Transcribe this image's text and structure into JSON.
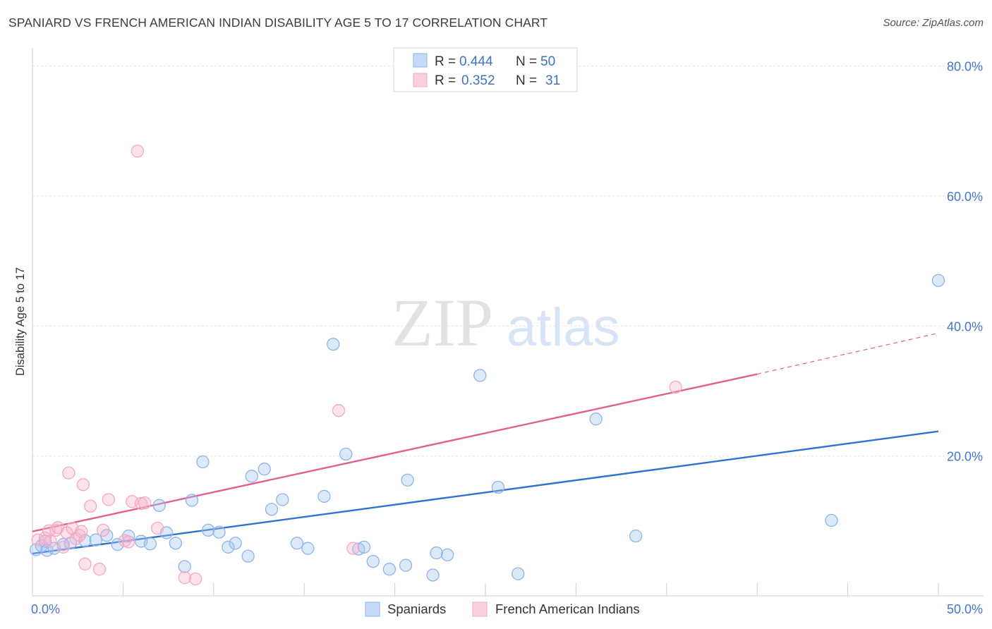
{
  "header": {
    "title": "SPANIARD VS FRENCH AMERICAN INDIAN DISABILITY AGE 5 TO 17 CORRELATION CHART",
    "source": "Source: ZipAtlas.com"
  },
  "watermark": {
    "zip": "ZIP",
    "atlas": "atlas"
  },
  "chart_data": {
    "type": "scatter",
    "title": "SPANIARD VS FRENCH AMERICAN INDIAN DISABILITY AGE 5 TO 17 CORRELATION CHART",
    "xlabel": "",
    "ylabel": "Disability Age 5 to 17",
    "xlim": [
      0,
      50
    ],
    "ylim": [
      -1.5,
      82
    ],
    "x_tick_labels": [
      "0.0%",
      "50.0%"
    ],
    "y_ticks": [
      20,
      40,
      60,
      80
    ],
    "y_tick_labels": [
      "20.0%",
      "40.0%",
      "60.0%",
      "80.0%"
    ],
    "grid": true,
    "legend": {
      "position": "top-center",
      "entries": [
        {
          "r_label": "R =",
          "r_value": "0.444",
          "n_label": "N =",
          "n_value": "50"
        },
        {
          "r_label": "R =",
          "r_value": "0.352",
          "n_label": "N =",
          "n_value": "31"
        }
      ]
    },
    "series": [
      {
        "name": "Spaniards",
        "color": "#8fb4e8",
        "line_color": "#2f72d0",
        "trend": {
          "x0": 0,
          "y0": 5.0,
          "x1": 50,
          "y1": 23.8
        },
        "points": [
          [
            0.2,
            5.6
          ],
          [
            0.5,
            6.2
          ],
          [
            0.7,
            6.9
          ],
          [
            0.8,
            5.5
          ],
          [
            1.2,
            5.8
          ],
          [
            1.7,
            6.4
          ],
          [
            2.1,
            6.6
          ],
          [
            2.9,
            7.0
          ],
          [
            3.5,
            7.1
          ],
          [
            4.1,
            7.8
          ],
          [
            4.7,
            6.4
          ],
          [
            5.3,
            7.7
          ],
          [
            6.0,
            6.9
          ],
          [
            6.5,
            6.5
          ],
          [
            7.0,
            12.4
          ],
          [
            7.4,
            8.2
          ],
          [
            7.9,
            6.6
          ],
          [
            8.4,
            3.0
          ],
          [
            8.8,
            13.2
          ],
          [
            9.4,
            19.1
          ],
          [
            9.7,
            8.6
          ],
          [
            10.3,
            8.3
          ],
          [
            10.8,
            6.0
          ],
          [
            11.2,
            6.6
          ],
          [
            11.9,
            4.6
          ],
          [
            12.1,
            16.9
          ],
          [
            12.8,
            18.0
          ],
          [
            13.2,
            11.8
          ],
          [
            13.8,
            13.3
          ],
          [
            14.6,
            6.6
          ],
          [
            15.2,
            5.8
          ],
          [
            16.1,
            13.8
          ],
          [
            16.6,
            37.2
          ],
          [
            17.3,
            20.3
          ],
          [
            18.0,
            5.7
          ],
          [
            18.3,
            6.0
          ],
          [
            18.8,
            3.8
          ],
          [
            19.7,
            2.6
          ],
          [
            20.6,
            3.2
          ],
          [
            20.7,
            16.3
          ],
          [
            22.1,
            1.7
          ],
          [
            22.3,
            5.1
          ],
          [
            22.9,
            4.8
          ],
          [
            24.7,
            32.4
          ],
          [
            25.7,
            15.2
          ],
          [
            26.8,
            1.9
          ],
          [
            31.1,
            25.7
          ],
          [
            33.3,
            7.7
          ],
          [
            44.1,
            10.1
          ],
          [
            50.0,
            47.0
          ]
        ]
      },
      {
        "name": "French American Indians",
        "color": "#f4a8c2",
        "line_color": "#e06090",
        "trend": {
          "x0": 0,
          "y0": 8.4,
          "x1": 40.0,
          "y1": 32.6,
          "dash_x1": 50,
          "dash_y1": 38.9
        },
        "points": [
          [
            0.3,
            7.1
          ],
          [
            0.7,
            7.4
          ],
          [
            0.9,
            8.5
          ],
          [
            1.0,
            6.9
          ],
          [
            1.3,
            8.6
          ],
          [
            1.4,
            9.0
          ],
          [
            1.7,
            6.0
          ],
          [
            1.9,
            8.2
          ],
          [
            2.0,
            17.4
          ],
          [
            2.2,
            8.9
          ],
          [
            2.4,
            7.3
          ],
          [
            2.6,
            7.8
          ],
          [
            2.7,
            8.4
          ],
          [
            2.8,
            15.6
          ],
          [
            2.9,
            3.4
          ],
          [
            3.2,
            12.3
          ],
          [
            3.7,
            2.6
          ],
          [
            3.9,
            8.6
          ],
          [
            4.2,
            13.3
          ],
          [
            5.1,
            7.0
          ],
          [
            5.3,
            6.8
          ],
          [
            5.5,
            13.0
          ],
          [
            5.8,
            66.9
          ],
          [
            6.0,
            12.7
          ],
          [
            6.2,
            12.8
          ],
          [
            6.9,
            8.9
          ],
          [
            8.4,
            1.3
          ],
          [
            9.0,
            1.1
          ],
          [
            16.9,
            27.0
          ],
          [
            17.7,
            5.8
          ],
          [
            35.5,
            30.6
          ]
        ]
      }
    ]
  }
}
